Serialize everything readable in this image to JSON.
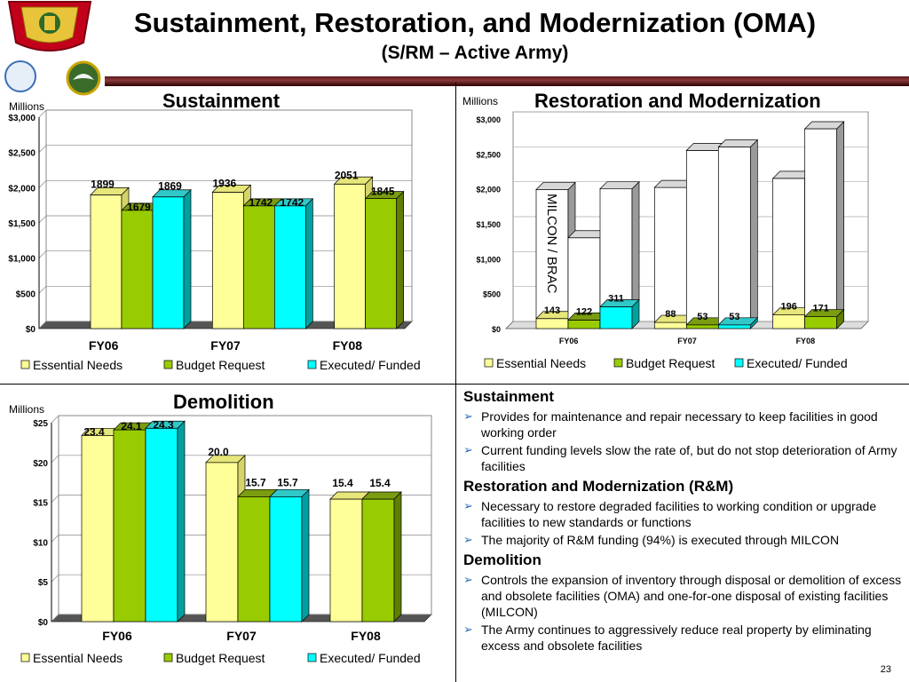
{
  "header": {
    "title": "Sustainment, Restoration, and Modernization (OMA)",
    "subtitle": "(S/RM – Active Army)"
  },
  "colors": {
    "essential": "#ffff99",
    "budget": "#99cc00",
    "executed": "#00ffff",
    "accent_rule": "#6b1f1f",
    "bullet": "#2a6ebb"
  },
  "logos": {
    "army_emblem_icon": "us-army-installation-management-crest-icon",
    "mwr_logo_icon": "mwr-logo-icon",
    "eagle_seal_icon": "eagle-seal-icon"
  },
  "charts": {
    "sustainment": {
      "title": "Sustainment",
      "unit": "Millions"
    },
    "rm": {
      "title": "Restoration and Modernization",
      "unit": "Millions",
      "annotation": "MILCON / BRAC"
    },
    "demolition": {
      "title": "Demolition",
      "unit": "Millions"
    }
  },
  "chart_data": [
    {
      "type": "bar",
      "title": "Sustainment",
      "ylabel": "Millions",
      "categories": [
        "FY06",
        "FY07",
        "FY08"
      ],
      "series": [
        {
          "name": "Essential Needs",
          "values": [
            1899,
            1936,
            2051
          ]
        },
        {
          "name": "Budget Request",
          "values": [
            1679,
            1742,
            1845
          ]
        },
        {
          "name": "Executed/ Funded",
          "values": [
            1869,
            1742,
            null
          ]
        }
      ],
      "data_labels": [
        [
          "1899",
          "1679",
          "1869"
        ],
        [
          "1936",
          "1742",
          "1742"
        ],
        [
          "2051",
          "1845",
          ""
        ]
      ],
      "ylim": [
        0,
        3000
      ],
      "yticks": [
        "$0",
        "$500",
        "$1,000",
        "$1,500",
        "$2,000",
        "$2,500",
        "$3,000"
      ],
      "ytick_values": [
        0,
        500,
        1000,
        1500,
        2000,
        2500,
        3000
      ],
      "legend": "bottom",
      "grid": true
    },
    {
      "type": "bar",
      "title": "Restoration and Modernization",
      "ylabel": "Millions",
      "categories": [
        "FY06",
        "FY07",
        "FY08"
      ],
      "series": [
        {
          "name": "Essential Needs",
          "values": [
            143,
            88,
            196
          ]
        },
        {
          "name": "Budget Request",
          "values": [
            122,
            53,
            171
          ]
        },
        {
          "name": "Executed/ Funded",
          "values": [
            311,
            53,
            null
          ]
        }
      ],
      "milcon_brac_stack_totals": [
        [
          1990,
          1300,
          2000
        ],
        [
          2020,
          2550,
          2600
        ],
        [
          2150,
          2860,
          null
        ]
      ],
      "annotation": "MILCON / BRAC",
      "data_labels": [
        [
          "143",
          "122",
          "311"
        ],
        [
          "88",
          "53",
          "53"
        ],
        [
          "196",
          "171",
          ""
        ]
      ],
      "ylim": [
        0,
        3000
      ],
      "yticks": [
        "$0",
        "$500",
        "$1,000",
        "$1,500",
        "$2,000",
        "$2,500",
        "$3,000"
      ],
      "ytick_values": [
        0,
        500,
        1000,
        1500,
        2000,
        2500,
        3000
      ],
      "legend": "bottom",
      "grid": true
    },
    {
      "type": "bar",
      "title": "Demolition",
      "ylabel": "Millions",
      "categories": [
        "FY06",
        "FY07",
        "FY08"
      ],
      "series": [
        {
          "name": "Essential Needs",
          "values": [
            23.4,
            20.0,
            15.4
          ]
        },
        {
          "name": "Budget Request",
          "values": [
            24.1,
            15.7,
            15.4
          ]
        },
        {
          "name": "Executed/ Funded",
          "values": [
            24.3,
            15.7,
            null
          ]
        }
      ],
      "data_labels": [
        [
          "23.4",
          "24.1",
          "24.3"
        ],
        [
          "20.0",
          "15.7",
          "15.7"
        ],
        [
          "15.4",
          "15.4",
          ""
        ]
      ],
      "ylim": [
        0,
        25
      ],
      "yticks": [
        "$0",
        "$5",
        "$10",
        "$15",
        "$20",
        "$25"
      ],
      "ytick_values": [
        0,
        5,
        10,
        15,
        20,
        25
      ],
      "legend": "bottom",
      "grid": true
    }
  ],
  "notes": {
    "sustainment": {
      "heading": "Sustainment",
      "items": [
        "Provides for maintenance and repair necessary to keep facilities in good working order",
        "Current funding levels slow the rate of, but do not stop deterioration of Army facilities"
      ]
    },
    "rm": {
      "heading": "Restoration and Modernization (R&M)",
      "items": [
        "Necessary to restore degraded facilities to working condition or upgrade facilities to new standards or functions",
        "The majority of R&M funding (94%) is executed through MILCON"
      ]
    },
    "demolition": {
      "heading": "Demolition",
      "items": [
        "Controls the expansion of inventory through disposal or demolition of excess and obsolete facilities (OMA) and one-for-one disposal of existing facilities (MILCON)",
        "The Army continues to aggressively reduce real property  by eliminating excess and obsolete facilities"
      ]
    }
  },
  "footer": {
    "page_number": "23"
  }
}
